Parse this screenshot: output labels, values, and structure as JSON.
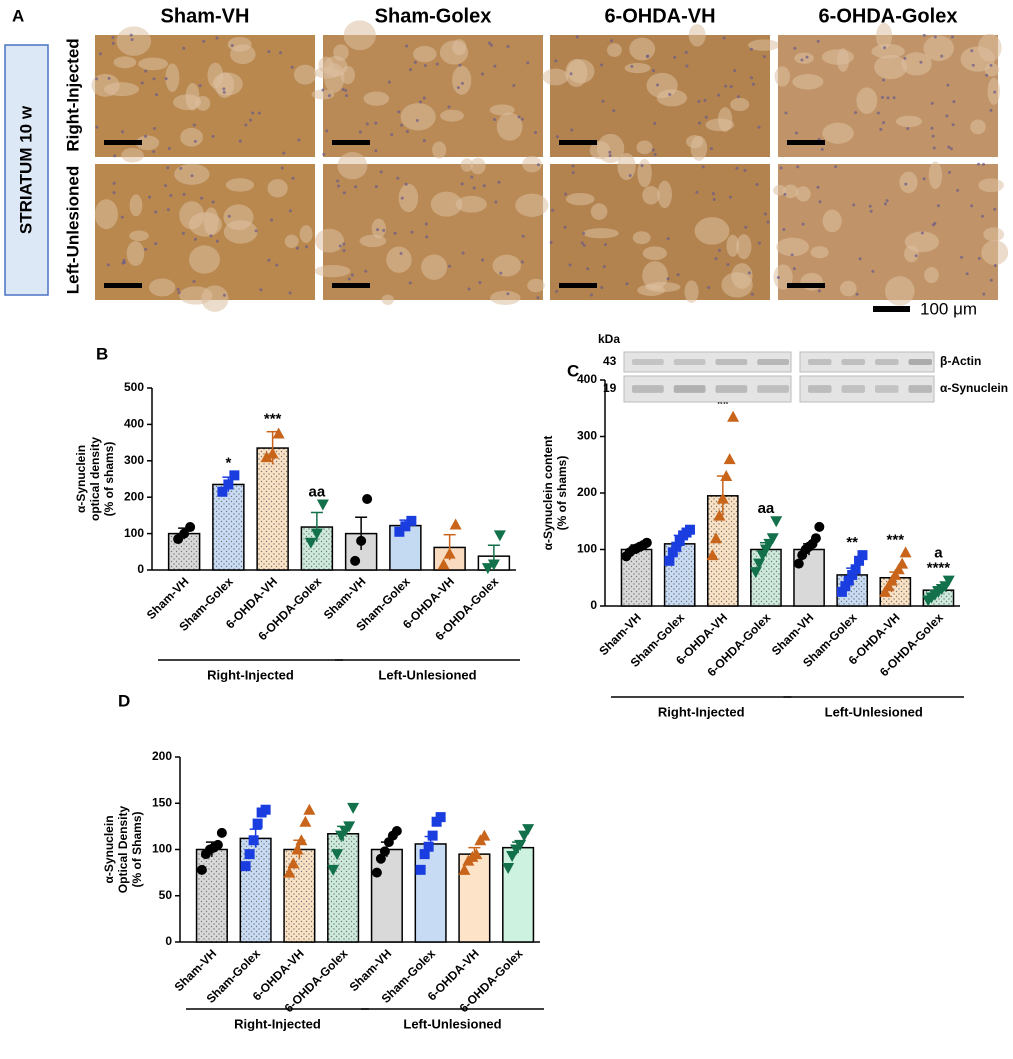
{
  "panel_a": {
    "label": "A",
    "columns": [
      "Sham-VH",
      "Sham-Golex",
      "6-OHDA-VH",
      "6-OHDA-Golex"
    ],
    "rows": [
      "Right-Injected",
      "Left-Unlesioned"
    ],
    "region": "STRIATUM 10 w",
    "scale_bar": "100 μm"
  },
  "chart_data": [
    {
      "type": "bar",
      "label": "B",
      "ylabel": [
        "α-Synuclein",
        "optical density",
        "(% of shams)"
      ],
      "categories": [
        "Sham-VH",
        "Sham-Golex",
        "6-OHDA-VH",
        "6-OHDA-Golex",
        "Sham-VH",
        "Sham-Golex",
        "6-OHDA-VH",
        "6-OHDA-Golex"
      ],
      "groups": [
        "Right-Injected",
        "Left-Unlesioned"
      ],
      "values": [
        100,
        235,
        335,
        118,
        100,
        122,
        62,
        38
      ],
      "errors": [
        15,
        20,
        45,
        40,
        45,
        15,
        35,
        30
      ],
      "points": [
        [
          85,
          100,
          118
        ],
        [
          215,
          235,
          260
        ],
        [
          310,
          320,
          375
        ],
        [
          75,
          100,
          180
        ],
        [
          25,
          80,
          195
        ],
        [
          105,
          120,
          135
        ],
        [
          15,
          45,
          125
        ],
        [
          5,
          15,
          95
        ]
      ],
      "annotations": [
        [],
        [
          "*"
        ],
        [
          "***"
        ],
        [
          "aa"
        ],
        [],
        [],
        [],
        []
      ],
      "marker_colors": [
        "#000000",
        "#1a3de0",
        "#c8651b",
        "#12704a",
        "#000000",
        "#1a3de0",
        "#c8651b",
        "#12704a"
      ],
      "markers": [
        "circle",
        "square",
        "triangle-up",
        "triangle-down",
        "circle",
        "square",
        "triangle-up",
        "triangle-down"
      ],
      "bar_fills": [
        "#d9d9d9",
        "#c9dcf5",
        "#fbe2c4",
        "#cdebdc",
        "#d9d9d9",
        "#c4d9f2",
        "#f9dcc0",
        "#ffffff"
      ],
      "dotted": [
        true,
        true,
        true,
        true,
        false,
        false,
        false,
        false
      ],
      "ylim": [
        0,
        500
      ],
      "yticks": [
        0,
        100,
        200,
        300,
        400,
        500
      ]
    },
    {
      "type": "bar",
      "label": "C",
      "ylabel": [
        "α-Synuclein content",
        "(% of shams)"
      ],
      "categories": [
        "Sham-VH",
        "Sham-Golex",
        "6-OHDA-VH",
        "6-OHDA-Golex",
        "Sham-VH",
        "Sham-Golex",
        "6-OHDA-VH",
        "6-OHDA-Golex"
      ],
      "groups": [
        "Right-Injected",
        "Left-Unlesioned"
      ],
      "values": [
        100,
        110,
        195,
        100,
        100,
        55,
        50,
        28
      ],
      "errors": [
        8,
        15,
        35,
        12,
        10,
        12,
        10,
        6
      ],
      "points": [
        [
          88,
          95,
          100,
          102,
          105,
          108,
          112
        ],
        [
          80,
          95,
          105,
          115,
          125,
          130,
          135
        ],
        [
          90,
          120,
          160,
          190,
          230,
          260,
          335
        ],
        [
          60,
          75,
          90,
          100,
          110,
          120,
          150
        ],
        [
          75,
          90,
          100,
          105,
          110,
          120,
          140
        ],
        [
          25,
          35,
          45,
          55,
          65,
          80,
          90
        ],
        [
          25,
          35,
          45,
          55,
          65,
          75,
          95
        ],
        [
          10,
          15,
          20,
          25,
          30,
          35,
          45
        ]
      ],
      "annotations": [
        [],
        [],
        [
          "**"
        ],
        [
          "aa"
        ],
        [],
        [
          "**"
        ],
        [
          "***"
        ],
        [
          "a",
          "****"
        ]
      ],
      "marker_colors": [
        "#000000",
        "#1a3de0",
        "#c8651b",
        "#12704a",
        "#000000",
        "#1a3de0",
        "#c8651b",
        "#12704a"
      ],
      "markers": [
        "circle",
        "square",
        "triangle-up",
        "triangle-down",
        "circle",
        "square",
        "triangle-up",
        "triangle-down"
      ],
      "bar_fills": [
        "#d9d9d9",
        "#c9dcf5",
        "#fbe2c4",
        "#cdebdc",
        "#d9d9d9",
        "#c9dcf5",
        "#fbe2c4",
        "#cdebdc"
      ],
      "dotted": [
        true,
        true,
        true,
        true,
        false,
        true,
        true,
        true
      ],
      "ylim": [
        0,
        400
      ],
      "yticks": [
        0,
        100,
        200,
        300,
        400
      ],
      "blot": {
        "unit": "kDa",
        "bands": [
          {
            "weight": 43,
            "name": "β-Actin"
          },
          {
            "weight": 19,
            "name": "α-Synuclein"
          }
        ]
      }
    },
    {
      "type": "bar",
      "label": "D",
      "ylabel": [
        "α-Synuclein",
        "Optical Density",
        "(% of Shams)"
      ],
      "categories": [
        "Sham-VH",
        "Sham-Golex",
        "6-OHDA-VH",
        "6-OHDA-Golex",
        "Sham-VH",
        "Sham-Golex",
        "6-OHDA-VH",
        "6-OHDA-Golex"
      ],
      "groups": [
        "Right-Injected",
        "Left-Unlesioned"
      ],
      "values": [
        100,
        112,
        100,
        117,
        100,
        106,
        95,
        102
      ],
      "errors": [
        8,
        10,
        10,
        8,
        8,
        8,
        7,
        6
      ],
      "points": [
        [
          78,
          95,
          100,
          102,
          105,
          118
        ],
        [
          82,
          95,
          110,
          128,
          140,
          143
        ],
        [
          75,
          85,
          100,
          110,
          130,
          143
        ],
        [
          78,
          95,
          115,
          120,
          125,
          145
        ],
        [
          75,
          90,
          98,
          108,
          115,
          120
        ],
        [
          78,
          95,
          103,
          115,
          130,
          135
        ],
        [
          78,
          88,
          92,
          95,
          110,
          115
        ],
        [
          80,
          93,
          100,
          105,
          115,
          122
        ]
      ],
      "annotations": [
        [],
        [],
        [],
        [],
        [],
        [],
        [],
        []
      ],
      "marker_colors": [
        "#000000",
        "#1a3de0",
        "#c8651b",
        "#12704a",
        "#000000",
        "#1a3de0",
        "#c8651b",
        "#12704a"
      ],
      "markers": [
        "circle",
        "square",
        "triangle-up",
        "triangle-down",
        "circle",
        "square",
        "triangle-up",
        "triangle-down"
      ],
      "bar_fills": [
        "#d9d9d9",
        "#c9dcf5",
        "#fbe2c4",
        "#cdebdc",
        "#d9d9d9",
        "#c7dbf5",
        "#fde3c8",
        "#cdf2e0"
      ],
      "dotted": [
        true,
        true,
        true,
        true,
        false,
        false,
        false,
        false
      ],
      "ylim": [
        0,
        200
      ],
      "yticks": [
        0,
        50,
        100,
        150,
        200
      ]
    }
  ]
}
